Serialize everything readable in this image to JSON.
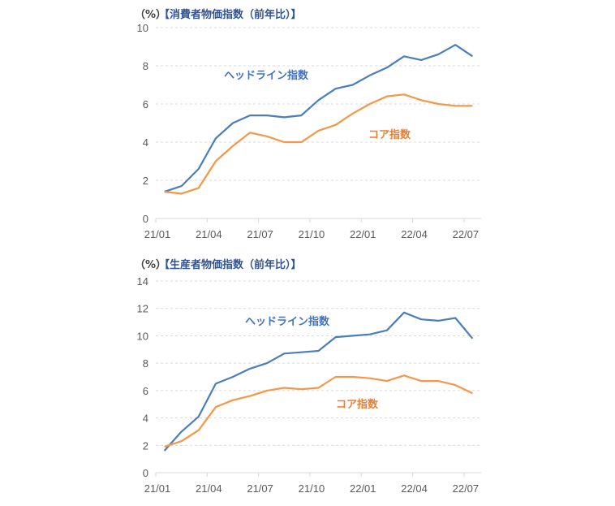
{
  "chart_data": [
    {
      "type": "line",
      "title_unit": "（%）",
      "title": "【消費者物価指数（前年比）】",
      "xlabel": "",
      "ylabel": "%",
      "ylim": [
        0,
        10
      ],
      "yticks": [
        0,
        2,
        4,
        6,
        8,
        10
      ],
      "x_tick_labels": [
        "21/01",
        "21/04",
        "21/07",
        "21/10",
        "22/01",
        "22/04",
        "22/07"
      ],
      "x": [
        "21/01",
        "21/02",
        "21/03",
        "21/04",
        "21/05",
        "21/06",
        "21/07",
        "21/08",
        "21/09",
        "21/10",
        "21/11",
        "21/12",
        "22/01",
        "22/02",
        "22/03",
        "22/04",
        "22/05",
        "22/06",
        "22/07"
      ],
      "grid": true,
      "series": [
        {
          "name": "ヘッドライン指数",
          "color": "#4a7ebb",
          "values": [
            1.4,
            1.7,
            2.6,
            4.2,
            5.0,
            5.4,
            5.4,
            5.3,
            5.4,
            6.2,
            6.8,
            7.0,
            7.5,
            7.9,
            8.5,
            8.3,
            8.6,
            9.1,
            8.5
          ]
        },
        {
          "name": "コア指数",
          "color": "#f79646",
          "values": [
            1.4,
            1.3,
            1.6,
            3.0,
            3.8,
            4.5,
            4.3,
            4.0,
            4.0,
            4.6,
            4.9,
            5.5,
            6.0,
            6.4,
            6.5,
            6.2,
            6.0,
            5.9,
            5.9
          ]
        }
      ]
    },
    {
      "type": "line",
      "title_unit": "（%）",
      "title": "【生産者物価指数（前年比）】",
      "xlabel": "",
      "ylabel": "%",
      "ylim": [
        0,
        14
      ],
      "yticks": [
        0,
        2,
        4,
        6,
        8,
        10,
        12,
        14
      ],
      "x_tick_labels": [
        "21/01",
        "21/04",
        "21/07",
        "21/10",
        "22/01",
        "22/04",
        "22/07"
      ],
      "x": [
        "21/01",
        "21/02",
        "21/03",
        "21/04",
        "21/05",
        "21/06",
        "21/07",
        "21/08",
        "21/09",
        "21/10",
        "21/11",
        "21/12",
        "22/01",
        "22/02",
        "22/03",
        "22/04",
        "22/05",
        "22/06",
        "22/07"
      ],
      "grid": true,
      "series": [
        {
          "name": "ヘッドライン指数",
          "color": "#4a7ebb",
          "values": [
            1.6,
            3.0,
            4.1,
            6.5,
            7.0,
            7.6,
            8.0,
            8.7,
            8.8,
            8.9,
            9.9,
            10.0,
            10.1,
            10.4,
            11.7,
            11.2,
            11.1,
            11.3,
            9.8
          ]
        },
        {
          "name": "コア指数",
          "color": "#f79646",
          "values": [
            1.9,
            2.3,
            3.1,
            4.8,
            5.3,
            5.6,
            6.0,
            6.2,
            6.1,
            6.2,
            7.0,
            7.0,
            6.9,
            6.7,
            7.1,
            6.7,
            6.7,
            6.4,
            5.8
          ]
        }
      ]
    }
  ]
}
